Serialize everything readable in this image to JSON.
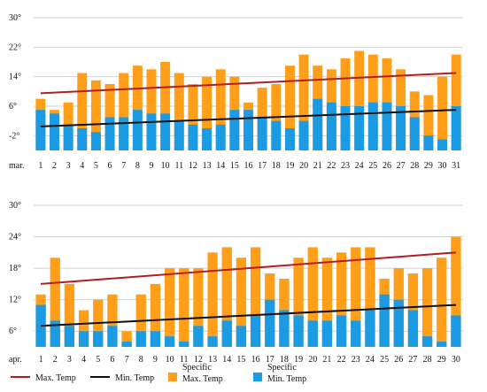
{
  "colors": {
    "max_bar": "#FF9E18",
    "min_bar": "#1B9BE3",
    "max_line": "#B21E1E",
    "min_line": "#111111",
    "grid": "#D0D0D0"
  },
  "legend": {
    "max_line": "Max. Temp",
    "min_line": "Min. Temp",
    "max_bar_l1": "Specific",
    "max_bar_l2": "Max. Temp",
    "min_bar_l1": "Specific",
    "min_bar_l2": "Min. Temp"
  },
  "chart_data": [
    {
      "type": "bar",
      "month_label": "mar.",
      "categories": [
        "1",
        "2",
        "3",
        "4",
        "5",
        "6",
        "7",
        "8",
        "9",
        "10",
        "11",
        "12",
        "13",
        "14",
        "15",
        "16",
        "17",
        "18",
        "19",
        "20",
        "21",
        "22",
        "23",
        "24",
        "25",
        "26",
        "27",
        "28",
        "29",
        "30",
        "31"
      ],
      "yticks": [
        -2,
        6,
        14,
        22,
        30
      ],
      "ytick_labels": [
        "-2°",
        "6°",
        "14°",
        "22°",
        "30°"
      ],
      "ylim": [
        -6,
        30
      ],
      "grid": true,
      "series": [
        {
          "name": "Specific Max. Temp",
          "kind": "bar",
          "values": [
            8,
            5,
            7,
            15,
            13,
            12,
            15,
            17,
            16,
            18,
            15,
            12,
            14,
            16,
            14,
            7,
            11,
            12,
            17,
            20,
            17,
            16,
            19,
            21,
            20,
            19,
            16,
            10,
            9,
            14,
            20
          ]
        },
        {
          "name": "Specific Min. Temp",
          "kind": "bar",
          "values": [
            5,
            4,
            1,
            0,
            -1,
            3,
            3,
            5,
            4,
            4,
            2,
            1,
            0,
            1,
            5,
            5,
            3,
            2,
            0,
            2,
            8,
            7,
            6,
            6,
            7,
            7,
            6,
            3,
            -2,
            -3,
            6
          ]
        },
        {
          "name": "Max. Temp",
          "kind": "line",
          "start": 9.5,
          "end": 15
        },
        {
          "name": "Min. Temp",
          "kind": "line",
          "start": 0.5,
          "end": 5
        }
      ]
    },
    {
      "type": "bar",
      "month_label": "apr.",
      "categories": [
        "1",
        "2",
        "3",
        "4",
        "5",
        "6",
        "7",
        "8",
        "9",
        "10",
        "11",
        "12",
        "13",
        "14",
        "15",
        "16",
        "17",
        "18",
        "19",
        "20",
        "21",
        "22",
        "23",
        "24",
        "25",
        "26",
        "27",
        "28",
        "29",
        "30"
      ],
      "yticks": [
        6,
        12,
        18,
        24,
        30
      ],
      "ytick_labels": [
        "6°",
        "12°",
        "18°",
        "24°",
        "30°"
      ],
      "ylim": [
        3,
        30
      ],
      "grid": true,
      "series": [
        {
          "name": "Specific Max. Temp",
          "kind": "bar",
          "values": [
            13,
            20,
            15,
            10,
            12,
            13,
            6,
            13,
            15,
            18,
            18,
            18,
            21,
            22,
            20,
            22,
            17,
            16,
            20,
            22,
            20,
            21,
            22,
            22,
            16,
            18,
            17,
            18,
            20,
            24
          ]
        },
        {
          "name": "Specific Min. Temp",
          "kind": "bar",
          "values": [
            11,
            8,
            7,
            6,
            6,
            7,
            4,
            6,
            6,
            5,
            4,
            7,
            5,
            8,
            7,
            9,
            12,
            10,
            9,
            8,
            8,
            9,
            8,
            10,
            13,
            12,
            10,
            5,
            4,
            9
          ]
        },
        {
          "name": "Max. Temp",
          "kind": "line",
          "start": 15,
          "end": 21
        },
        {
          "name": "Min. Temp",
          "kind": "line",
          "start": 7,
          "end": 11
        }
      ]
    }
  ]
}
